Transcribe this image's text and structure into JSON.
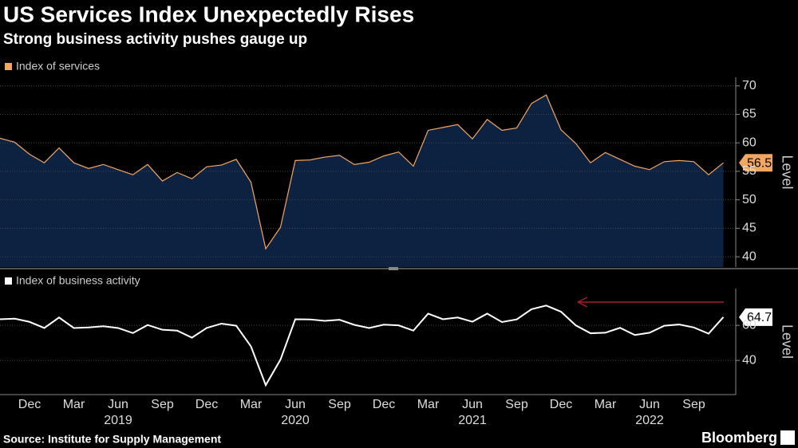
{
  "title": "US Services Index Unexpectedly Rises",
  "subtitle": "Strong business activity pushes gauge up",
  "source": "Source: Institute for Supply Management",
  "brand": "Bloomberg",
  "chart_data": [
    {
      "type": "area",
      "series": [
        {
          "name": "Index of services",
          "color": "#f2a660",
          "fill": "#0c2240",
          "values": [
            60.8,
            60.1,
            58.0,
            56.5,
            59.1,
            56.5,
            55.5,
            56.2,
            55.3,
            54.4,
            56.2,
            53.3,
            54.8,
            53.7,
            55.8,
            56.1,
            57.1,
            53.1,
            41.4,
            45.2,
            56.9,
            57.0,
            57.5,
            57.8,
            56.2,
            56.6,
            57.7,
            58.4,
            55.9,
            62.2,
            62.7,
            63.2,
            60.7,
            64.1,
            62.2,
            62.6,
            66.9,
            68.4,
            62.3,
            59.9,
            56.5,
            58.3,
            57.1,
            55.9,
            55.3,
            56.7,
            56.9,
            56.7,
            54.4,
            56.5
          ]
        }
      ],
      "ylim": [
        38.2,
        71.5
      ],
      "yticks": [
        40,
        45,
        50,
        55,
        60,
        65,
        70
      ],
      "y_label": "Level",
      "grid": true
    },
    {
      "type": "line",
      "categories": [
        null,
        null,
        "Dec",
        null,
        null,
        "Mar",
        null,
        null,
        "Jun",
        null,
        null,
        "Sep",
        null,
        null,
        "Dec",
        null,
        null,
        "Mar",
        null,
        null,
        "Jun",
        null,
        null,
        "Sep",
        null,
        null,
        "Dec",
        null,
        null,
        "Mar",
        null,
        null,
        "Jun",
        null,
        null,
        "Sep",
        null,
        null,
        "Dec",
        null,
        null,
        "Mar",
        null,
        null,
        "Jun",
        null,
        null,
        "Sep",
        null,
        null
      ],
      "years": [
        "2019",
        "2020",
        "2021",
        "2022"
      ],
      "series": [
        {
          "name": "Index of business activity",
          "color": "#ffffff",
          "values": [
            63.5,
            63.8,
            62.0,
            58.5,
            64.5,
            58.5,
            58.8,
            59.5,
            58.5,
            55.6,
            60.2,
            57.5,
            57.0,
            53.0,
            58.5,
            61.0,
            59.8,
            48.0,
            25.9,
            40.5,
            63.5,
            63.4,
            62.6,
            63.2,
            60.3,
            58.5,
            60.4,
            60.0,
            57.0,
            66.7,
            63.5,
            64.5,
            62.1,
            66.7,
            61.9,
            63.4,
            69.2,
            71.3,
            67.8,
            60.0,
            55.5,
            55.8,
            58.6,
            54.5,
            55.8,
            59.8,
            60.5,
            58.8,
            55.3,
            64.7
          ]
        }
      ],
      "ylim": [
        20.5,
        81
      ],
      "yticks": [
        40,
        60
      ],
      "y_label": "Level",
      "grid": true
    }
  ]
}
